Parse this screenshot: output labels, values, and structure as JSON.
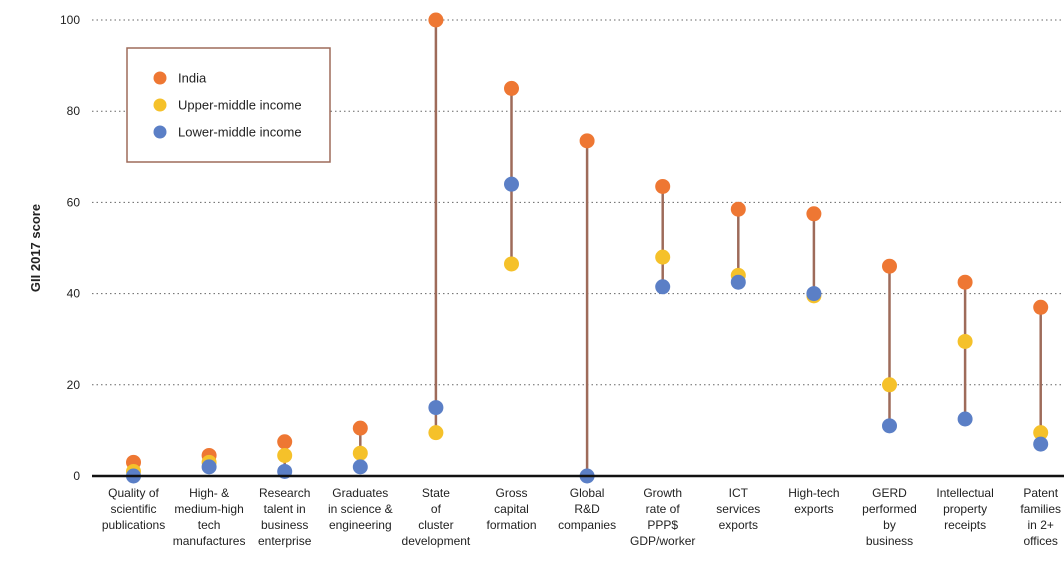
{
  "chart_data": {
    "type": "dot",
    "ylabel": "GII 2017 score",
    "ylim": [
      0,
      100
    ],
    "yticks": [
      0,
      20,
      40,
      60,
      80,
      100
    ],
    "grid": "horizontal dotted",
    "legend_position": "top-left",
    "categories": [
      [
        "Quality of",
        "scientific",
        "publications"
      ],
      [
        "High- &",
        "medium-high",
        "tech",
        "manufactures"
      ],
      [
        "Research",
        "talent in",
        "business",
        "enterprise"
      ],
      [
        "Graduates",
        "in science &",
        "engineering"
      ],
      [
        "State",
        "of",
        "cluster",
        "development"
      ],
      [
        "Gross",
        "capital",
        "formation"
      ],
      [
        "Global",
        "R&D",
        "companies"
      ],
      [
        "Growth",
        "rate of",
        "PPP$",
        "GDP/worker"
      ],
      [
        "ICT",
        "services",
        "exports"
      ],
      [
        "High-tech",
        "exports"
      ],
      [
        "GERD",
        "performed",
        "by",
        "business"
      ],
      [
        "Intellectual",
        "property",
        "receipts"
      ],
      [
        "Patent",
        "families",
        "in 2+",
        "offices"
      ]
    ],
    "series": [
      {
        "name": "India",
        "color": "#ee7733",
        "values": [
          3,
          4.5,
          7.5,
          10.5,
          100,
          85,
          73.5,
          63.5,
          58.5,
          57.5,
          46,
          42.5,
          37
        ]
      },
      {
        "name": "Upper-middle income",
        "color": "#f5c12a",
        "values": [
          1,
          3,
          4.5,
          5,
          9.5,
          46.5,
          null,
          48,
          44,
          39.5,
          20,
          29.5,
          9.5
        ]
      },
      {
        "name": "Lower-middle income",
        "color": "#5b7fc6",
        "values": [
          0,
          2,
          1,
          2,
          15,
          64,
          0,
          41.5,
          42.5,
          40,
          11,
          12.5,
          7
        ]
      }
    ],
    "line_color": "#9e6b5a",
    "legend_border_color": "#9e6b5a"
  }
}
